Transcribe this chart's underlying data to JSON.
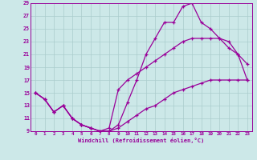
{
  "xlabel": "Windchill (Refroidissement éolien,°C)",
  "bg_color": "#cce8e8",
  "grid_color": "#aacccc",
  "line_color": "#990099",
  "xlim": [
    -0.5,
    23.5
  ],
  "ylim": [
    9,
    29
  ],
  "xticks": [
    0,
    1,
    2,
    3,
    4,
    5,
    6,
    7,
    8,
    9,
    10,
    11,
    12,
    13,
    14,
    15,
    16,
    17,
    18,
    19,
    20,
    21,
    22,
    23
  ],
  "yticks": [
    9,
    11,
    13,
    15,
    17,
    19,
    21,
    23,
    25,
    27,
    29
  ],
  "line1_x": [
    0,
    1,
    2,
    3,
    4,
    5,
    6,
    7,
    8,
    9,
    10,
    11,
    12,
    13,
    14,
    15,
    16,
    17,
    18,
    19,
    20,
    21,
    22,
    23
  ],
  "line1_y": [
    15,
    14,
    12,
    13,
    11,
    10,
    9.5,
    9,
    9,
    10,
    13.5,
    17,
    21,
    23.5,
    26,
    26,
    28.5,
    29,
    26,
    25,
    23.5,
    23,
    21,
    19.5
  ],
  "line2_x": [
    0,
    1,
    2,
    3,
    4,
    5,
    6,
    7,
    8,
    9,
    10,
    11,
    12,
    13,
    14,
    15,
    16,
    17,
    18,
    19,
    20,
    21,
    22,
    23
  ],
  "line2_y": [
    15,
    14,
    12,
    13,
    11,
    10,
    9.5,
    9,
    9.5,
    15.5,
    17,
    18,
    19,
    20,
    21,
    22,
    23,
    23.5,
    23.5,
    23.5,
    23.5,
    22,
    21,
    17
  ],
  "line3_x": [
    0,
    1,
    2,
    3,
    4,
    5,
    6,
    7,
    8,
    9,
    10,
    11,
    12,
    13,
    14,
    15,
    16,
    17,
    18,
    19,
    20,
    21,
    22,
    23
  ],
  "line3_y": [
    15,
    14,
    12,
    13,
    11,
    10,
    9.5,
    9,
    9,
    9.5,
    10.5,
    11.5,
    12.5,
    13,
    14,
    15,
    15.5,
    16,
    16.5,
    17,
    17,
    17,
    17,
    17
  ]
}
